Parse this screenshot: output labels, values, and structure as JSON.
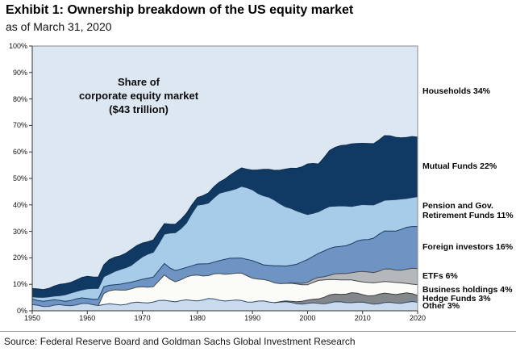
{
  "header": {
    "title": "Exhibit 1: Ownership breakdown of the US equity market",
    "subtitle": "as of March 31, 2020"
  },
  "annotation": {
    "text": "Share of\ncorporate equity market\n($43 trillion)"
  },
  "source": "Source: Federal Reserve Board and Goldman Sachs Global Investment Research",
  "chart_data": {
    "type": "area",
    "stacked": true,
    "grid": false,
    "legend_position": "right",
    "xlim": [
      1950,
      2020
    ],
    "ylim": [
      0,
      100
    ],
    "x_ticks": [
      "1950",
      "1960",
      "1970",
      "1980",
      "1990",
      "2000",
      "2010",
      "2020"
    ],
    "y_ticks": [
      "0%",
      "10%",
      "20%",
      "30%",
      "40%",
      "50%",
      "60%",
      "70%",
      "80%",
      "90%",
      "100%"
    ],
    "axis_color": "#333333",
    "border_color": "#8a8a8a",
    "x": [
      1950,
      1952,
      1954,
      1956,
      1958,
      1960,
      1962,
      1963,
      1964,
      1966,
      1968,
      1970,
      1972,
      1974,
      1975,
      1976,
      1978,
      1980,
      1982,
      1984,
      1986,
      1988,
      1990,
      1992,
      1994,
      1996,
      1998,
      2000,
      2002,
      2004,
      2006,
      2008,
      2010,
      2012,
      2014,
      2016,
      2018,
      2020
    ],
    "series": [
      {
        "name": "Other",
        "label": "Other 3%",
        "pct": 3,
        "color": "#c9daed",
        "stroke": "#2f4a6e",
        "values": [
          2.0,
          2.0,
          2.2,
          2.0,
          2.2,
          2.4,
          2.3,
          2.4,
          2.5,
          2.6,
          2.8,
          3.0,
          3.2,
          3.8,
          4.0,
          3.8,
          4.0,
          4.0,
          4.2,
          4.0,
          3.8,
          4.0,
          3.6,
          3.4,
          3.2,
          3.0,
          3.0,
          2.8,
          3.0,
          3.0,
          3.0,
          3.2,
          3.0,
          3.0,
          3.0,
          3.0,
          3.0,
          3.0
        ]
      },
      {
        "name": "Hedge Funds",
        "label": "Hedge Funds 3%",
        "pct": 3,
        "color": "#84878a",
        "stroke": "#3c3f42",
        "values": [
          0,
          0,
          0,
          0,
          0,
          0,
          0,
          0,
          0,
          0,
          0,
          0,
          0,
          0,
          0,
          0,
          0,
          0,
          0,
          0,
          0,
          0,
          0,
          0,
          0,
          0.3,
          0.8,
          1.2,
          1.8,
          2.5,
          3.0,
          3.6,
          3.2,
          3.2,
          3.4,
          3.2,
          3.2,
          3.0
        ]
      },
      {
        "name": "Business holdings",
        "label": "Business holdings 4%",
        "pct": 4,
        "color": "#fbfbf8",
        "stroke": "#45484b",
        "values": [
          0,
          0,
          0,
          0,
          0,
          0,
          0,
          4.5,
          5.0,
          5.2,
          5.5,
          5.8,
          6.2,
          9.5,
          8.0,
          7.5,
          8.5,
          9.5,
          9.0,
          10.0,
          10.5,
          10.0,
          9.0,
          8.0,
          7.5,
          7.0,
          6.5,
          6.0,
          6.5,
          6.0,
          5.5,
          5.0,
          5.0,
          4.5,
          4.5,
          4.2,
          4.0,
          4.0
        ]
      },
      {
        "name": "ETFs",
        "label": "ETFs 6%",
        "pct": 6,
        "color": "#b5b8bb",
        "stroke": "#45484b",
        "values": [
          0,
          0,
          0,
          0,
          0,
          0,
          0,
          0,
          0,
          0,
          0,
          0,
          0,
          0,
          0,
          0,
          0,
          0,
          0,
          0,
          0,
          0,
          0,
          0,
          0,
          0,
          0.3,
          0.8,
          1.2,
          1.8,
          2.4,
          3.0,
          3.5,
          4.0,
          4.5,
          5.0,
          5.5,
          6.0
        ]
      },
      {
        "name": "Foreign investors",
        "label": "Foreign investors 16%",
        "pct": 16,
        "color": "#6e94c4",
        "stroke": "#1d3c60",
        "values": [
          2.0,
          2.0,
          2.0,
          2.0,
          2.0,
          2.0,
          2.0,
          2.2,
          2.2,
          2.4,
          2.6,
          3.0,
          3.2,
          4.5,
          4.2,
          4.0,
          4.0,
          4.2,
          4.5,
          4.8,
          5.5,
          6.0,
          6.5,
          6.0,
          6.2,
          6.5,
          7.0,
          8.5,
          9.5,
          10.0,
          10.5,
          10.5,
          12.0,
          13.0,
          14.5,
          15.0,
          15.5,
          16.0
        ]
      },
      {
        "name": "Pension and Gov. Retirement Funds",
        "label": "Pension and Gov.\nRetirement Funds 11%",
        "pct": 11,
        "color": "#a6cce9",
        "stroke": "#1d3c60",
        "values": [
          1.0,
          1.4,
          1.8,
          2.2,
          2.8,
          3.4,
          4.0,
          4.2,
          4.6,
          5.4,
          6.6,
          8.0,
          9.5,
          11.0,
          13.0,
          14.5,
          17.0,
          22.0,
          23.0,
          25.0,
          26.0,
          27.0,
          27.0,
          26.0,
          24.5,
          22.5,
          20.0,
          17.5,
          15.5,
          16.0,
          15.0,
          14.0,
          13.5,
          12.5,
          12.0,
          11.5,
          11.0,
          11.0
        ]
      },
      {
        "name": "Mutual Funds",
        "label": "Mutual Funds 22%",
        "pct": 22,
        "color": "#103a63",
        "stroke": "#0c2c4d",
        "values": [
          3.0,
          3.3,
          3.6,
          4.0,
          4.3,
          4.6,
          4.8,
          4.6,
          5.2,
          5.4,
          5.6,
          5.2,
          4.8,
          4.0,
          3.8,
          3.5,
          3.2,
          3.0,
          3.5,
          4.5,
          6.0,
          7.0,
          7.5,
          9.5,
          11.5,
          14.0,
          16.5,
          19.0,
          18.0,
          21.0,
          22.5,
          24.0,
          23.0,
          23.5,
          24.0,
          23.5,
          23.0,
          22.5
        ]
      }
    ],
    "households": {
      "name": "Households",
      "label": "Households 34%",
      "pct": 34,
      "color": "#dde7f2",
      "remainder": true
    }
  }
}
